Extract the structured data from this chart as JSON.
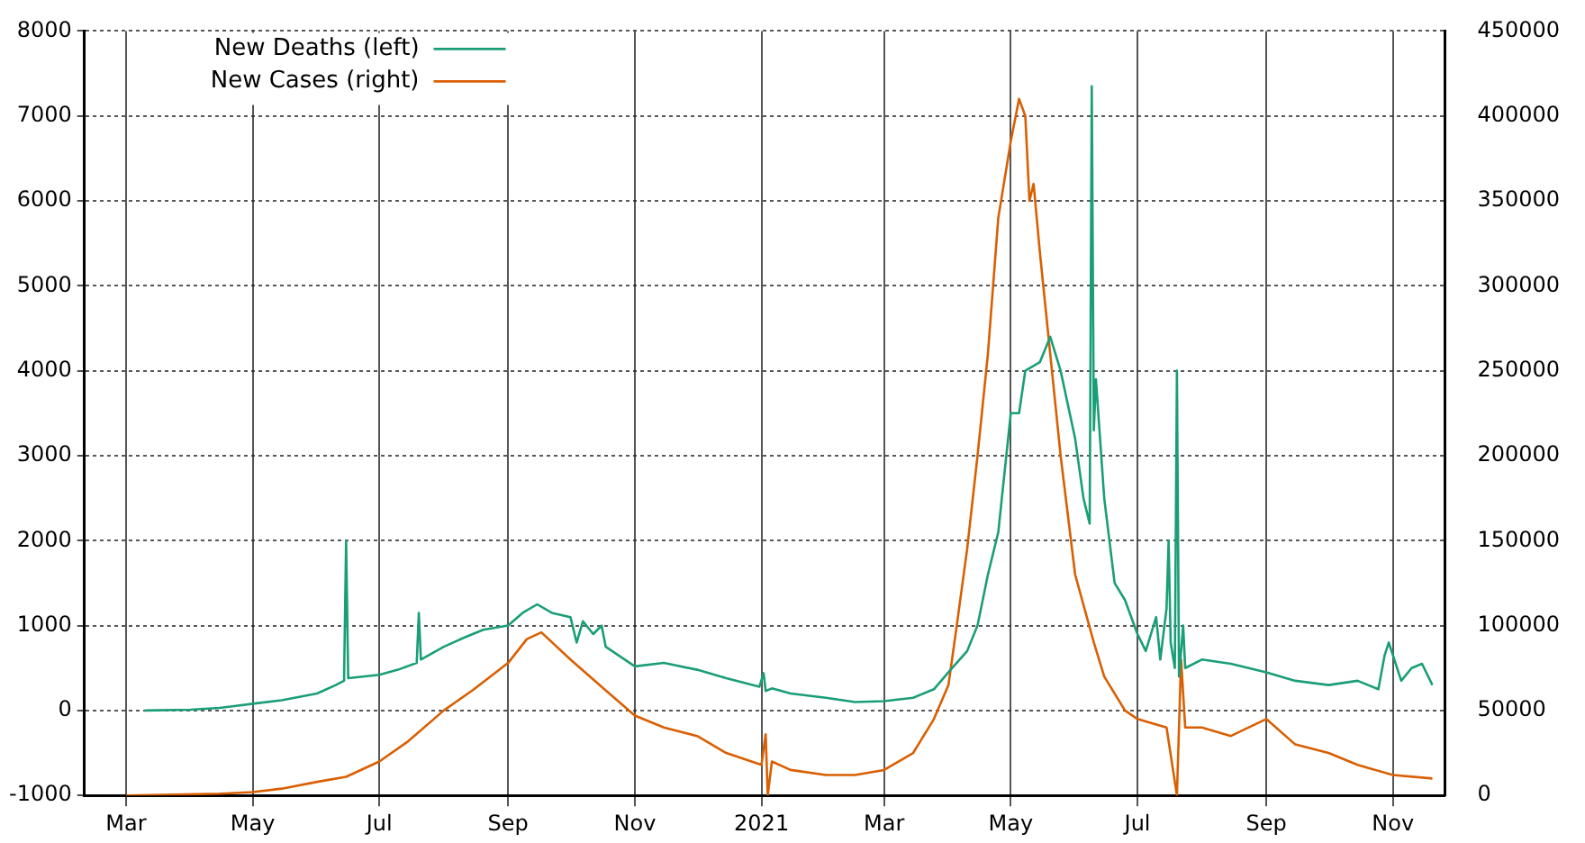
{
  "chart_data": {
    "type": "line",
    "legend": "top left",
    "grid": true,
    "marker": "none",
    "line_style": "solid",
    "xlim": [
      "2020-02-10",
      "2021-11-26"
    ],
    "xticks": [
      {
        "value": "2020-03",
        "label": "Mar"
      },
      {
        "value": "2020-05",
        "label": "May"
      },
      {
        "value": "2020-07",
        "label": "Jul"
      },
      {
        "value": "2020-09",
        "label": "Sep"
      },
      {
        "value": "2020-11",
        "label": "Nov"
      },
      {
        "value": "2021-01",
        "label": "2021"
      },
      {
        "value": "2021-03",
        "label": "Mar"
      },
      {
        "value": "2021-05",
        "label": "May"
      },
      {
        "value": "2021-07",
        "label": "Jul"
      },
      {
        "value": "2021-09",
        "label": "Sep"
      },
      {
        "value": "2021-11",
        "label": "Nov"
      }
    ],
    "ylim": [
      -1000,
      8000
    ],
    "yticks": [
      -1000,
      0,
      1000,
      2000,
      3000,
      4000,
      5000,
      6000,
      7000,
      8000
    ],
    "y2lim": [
      0,
      450000
    ],
    "y2ticks": [
      0,
      50000,
      100000,
      150000,
      200000,
      250000,
      300000,
      350000,
      400000,
      450000
    ],
    "series": [
      {
        "name": "New Deaths (left)",
        "color": "#1a9e77",
        "axis": "y",
        "x": [
          "2020-03-10",
          "2020-04-01",
          "2020-04-15",
          "2020-05-01",
          "2020-05-15",
          "2020-06-01",
          "2020-06-10",
          "2020-06-14",
          "2020-06-15",
          "2020-06-16",
          "2020-07-01",
          "2020-07-10",
          "2020-07-19",
          "2020-07-20",
          "2020-07-21",
          "2020-08-01",
          "2020-08-10",
          "2020-08-20",
          "2020-09-01",
          "2020-09-08",
          "2020-09-15",
          "2020-09-22",
          "2020-10-01",
          "2020-10-04",
          "2020-10-07",
          "2020-10-12",
          "2020-10-16",
          "2020-10-18",
          "2020-11-01",
          "2020-11-15",
          "2020-12-01",
          "2020-12-15",
          "2020-12-31",
          "2021-01-02",
          "2021-01-03",
          "2021-01-06",
          "2021-01-15",
          "2021-02-01",
          "2021-02-15",
          "2021-03-01",
          "2021-03-15",
          "2021-03-25",
          "2021-04-01",
          "2021-04-10",
          "2021-04-15",
          "2021-04-20",
          "2021-04-25",
          "2021-05-01",
          "2021-05-05",
          "2021-05-08",
          "2021-05-15",
          "2021-05-20",
          "2021-05-25",
          "2021-06-01",
          "2021-06-05",
          "2021-06-08",
          "2021-06-09",
          "2021-06-10",
          "2021-06-11",
          "2021-06-15",
          "2021-06-20",
          "2021-06-25",
          "2021-07-01",
          "2021-07-05",
          "2021-07-10",
          "2021-07-12",
          "2021-07-15",
          "2021-07-16",
          "2021-07-17",
          "2021-07-19",
          "2021-07-20",
          "2021-07-21",
          "2021-07-23",
          "2021-07-24",
          "2021-08-01",
          "2021-08-15",
          "2021-09-01",
          "2021-09-15",
          "2021-10-01",
          "2021-10-15",
          "2021-10-25",
          "2021-10-28",
          "2021-10-30",
          "2021-11-05",
          "2021-11-10",
          "2021-11-15",
          "2021-11-20"
        ],
        "values": [
          0,
          10,
          30,
          80,
          120,
          200,
          300,
          350,
          2000,
          380,
          420,
          480,
          560,
          1150,
          600,
          750,
          850,
          950,
          1000,
          1150,
          1250,
          1150,
          1100,
          800,
          1050,
          900,
          1000,
          750,
          520,
          560,
          480,
          380,
          280,
          440,
          230,
          260,
          200,
          150,
          100,
          110,
          150,
          250,
          450,
          700,
          1000,
          1600,
          2100,
          3500,
          3500,
          4000,
          4100,
          4400,
          4000,
          3200,
          2500,
          2200,
          7350,
          3300,
          3900,
          2500,
          1500,
          1300,
          900,
          700,
          1100,
          600,
          1200,
          2000,
          800,
          500,
          4000,
          400,
          1000,
          500,
          600,
          550,
          450,
          350,
          300,
          350,
          250,
          650,
          800,
          350,
          500,
          550,
          300
        ]
      },
      {
        "name": "New Cases (right)",
        "color": "#d95f02",
        "axis": "y2",
        "x": [
          "2020-03-01",
          "2020-04-15",
          "2020-05-01",
          "2020-05-15",
          "2020-06-01",
          "2020-06-15",
          "2020-07-01",
          "2020-07-15",
          "2020-08-01",
          "2020-08-15",
          "2020-09-01",
          "2020-09-10",
          "2020-09-17",
          "2020-10-01",
          "2020-10-15",
          "2020-11-01",
          "2020-11-15",
          "2020-12-01",
          "2020-12-15",
          "2021-01-01",
          "2021-01-03",
          "2021-01-04",
          "2021-01-06",
          "2021-01-15",
          "2021-02-01",
          "2021-02-15",
          "2021-03-01",
          "2021-03-15",
          "2021-03-25",
          "2021-04-01",
          "2021-04-05",
          "2021-04-10",
          "2021-04-15",
          "2021-04-20",
          "2021-04-25",
          "2021-05-01",
          "2021-05-05",
          "2021-05-08",
          "2021-05-10",
          "2021-05-12",
          "2021-05-15",
          "2021-05-20",
          "2021-05-25",
          "2021-06-01",
          "2021-06-10",
          "2021-06-15",
          "2021-06-25",
          "2021-07-01",
          "2021-07-15",
          "2021-07-20",
          "2021-07-22",
          "2021-07-24",
          "2021-08-01",
          "2021-08-15",
          "2021-09-01",
          "2021-09-15",
          "2021-10-01",
          "2021-10-15",
          "2021-11-01",
          "2021-11-20"
        ],
        "values": [
          0,
          1000,
          2000,
          4000,
          8000,
          11000,
          20000,
          32000,
          50000,
          62000,
          78000,
          92000,
          96000,
          80000,
          65000,
          47000,
          40000,
          35000,
          25000,
          18000,
          36000,
          0,
          20000,
          15000,
          12000,
          12000,
          15000,
          25000,
          45000,
          65000,
          100000,
          145000,
          200000,
          260000,
          340000,
          385000,
          410000,
          400000,
          350000,
          360000,
          320000,
          260000,
          200000,
          130000,
          90000,
          70000,
          50000,
          45000,
          40000,
          0,
          80000,
          40000,
          40000,
          35000,
          45000,
          30000,
          25000,
          18000,
          12000,
          10000
        ]
      }
    ]
  }
}
